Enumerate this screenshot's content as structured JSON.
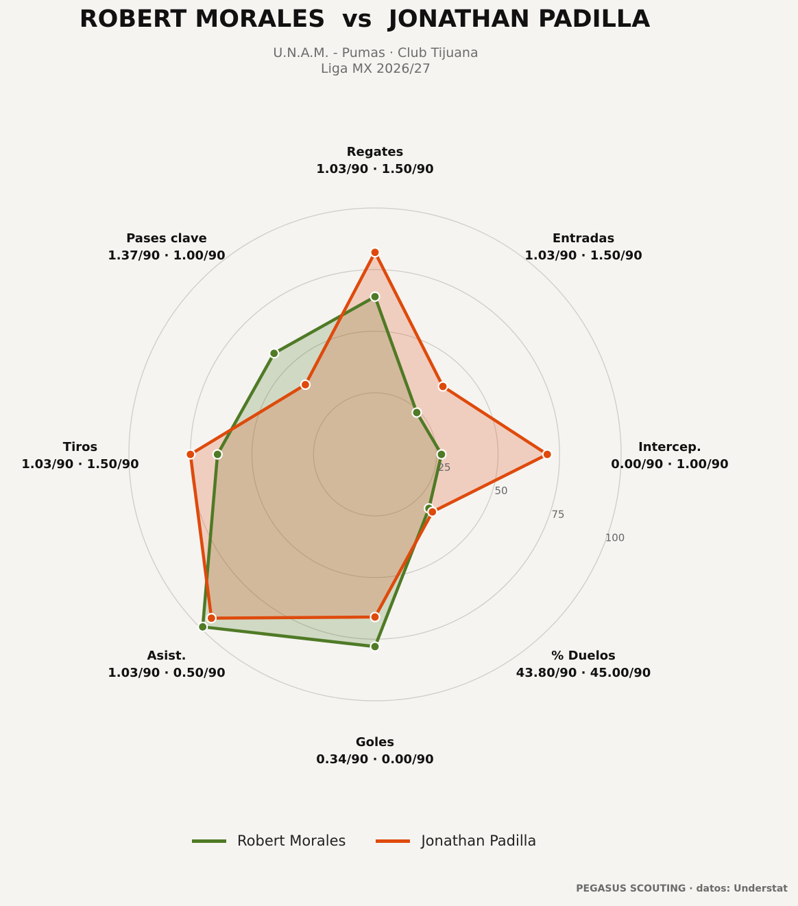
{
  "header": {
    "title": "ROBERT MORALES  vs  JONATHAN PADILLA",
    "subtitle_line1": "U.N.A.M. - Pumas · Club Tijuana",
    "subtitle_line2": "Liga MX 2026/27"
  },
  "footer": {
    "credit": "PEGASUS SCOUTING · datos: Understat"
  },
  "colors": {
    "background": "#f5f4f1",
    "series_1": "#4f7a26",
    "series_2": "#de4a0c",
    "grid": "#d0ccc6"
  },
  "chart_data": {
    "type": "radar",
    "axes": [
      {
        "label": "Regates",
        "values_text": "1.03/90 · 1.50/90"
      },
      {
        "label": "Entradas",
        "values_text": "1.03/90 · 1.50/90"
      },
      {
        "label": "Intercep.",
        "values_text": "0.00/90 · 1.00/90"
      },
      {
        "label": "% Duelos",
        "values_text": "43.80/90 · 45.00/90"
      },
      {
        "label": "Goles",
        "values_text": "0.34/90 · 0.00/90"
      },
      {
        "label": "Asist.",
        "values_text": "1.03/90 · 0.50/90"
      },
      {
        "label": "Tiros",
        "values_text": "1.03/90 · 1.50/90"
      },
      {
        "label": "Pases clave",
        "values_text": "1.37/90 · 1.00/90"
      }
    ],
    "radial_ticks": [
      25,
      50,
      75,
      100
    ],
    "range": [
      0,
      100
    ],
    "grid": true,
    "legend_position": "bottom-center",
    "series": [
      {
        "name": "Robert Morales",
        "color": "#4f7a26",
        "values": [
          64,
          24,
          27,
          31,
          78,
          99,
          64,
          58
        ]
      },
      {
        "name": "Jonathan Padilla",
        "color": "#de4a0c",
        "values": [
          82,
          39,
          70,
          33,
          66,
          94,
          75,
          40
        ]
      }
    ]
  }
}
